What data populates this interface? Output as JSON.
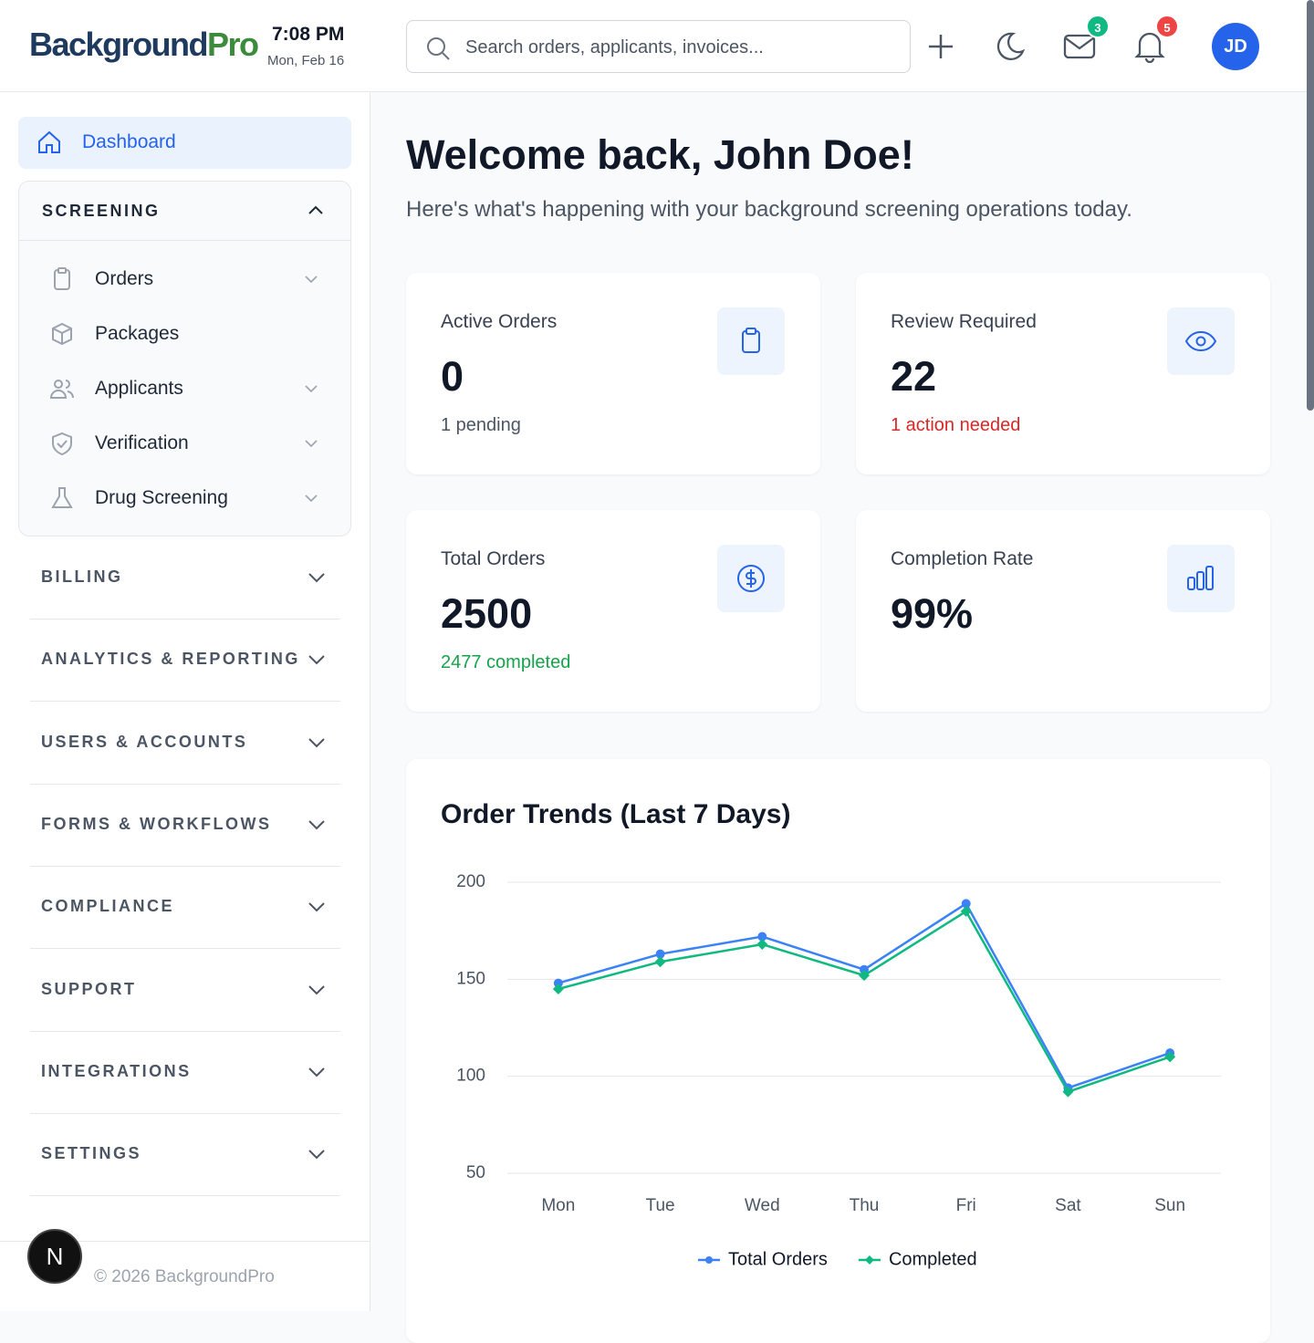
{
  "header": {
    "brand_main": "Background",
    "brand_accent": "Pro",
    "time": "7:08 PM",
    "date": "Mon, Feb 16",
    "search_placeholder": "Search orders, applicants, invoices...",
    "messages_badge": 3,
    "notifications_badge": 5,
    "avatar": "JD"
  },
  "sidebar": {
    "dashboard": "Dashboard",
    "screening": {
      "title": "SCREENING",
      "items": [
        "Orders",
        "Packages",
        "Applicants",
        "Verification",
        "Drug Screening"
      ]
    },
    "sections": [
      "BILLING",
      "ANALYTICS & REPORTING",
      "USERS & ACCOUNTS",
      "FORMS & WORKFLOWS",
      "COMPLIANCE",
      "SUPPORT",
      "INTEGRATIONS",
      "SETTINGS"
    ],
    "footer": "© 2026 BackgroundPro",
    "dev_badge": "N"
  },
  "welcome": {
    "title": "Welcome back, John Doe!",
    "subtitle": "Here's what's happening with your background screening operations today."
  },
  "stats": [
    {
      "label": "Active Orders",
      "value": "0",
      "note": "1 pending"
    },
    {
      "label": "Review Required",
      "value": "22",
      "note": "1 action needed"
    },
    {
      "label": "Total Orders",
      "value": "2500",
      "note": "2477 completed"
    },
    {
      "label": "Completion Rate",
      "value": "99%"
    }
  ],
  "chart_data": {
    "type": "line",
    "title": "Order Trends (Last 7 Days)",
    "categories": [
      "Mon",
      "Tue",
      "Wed",
      "Thu",
      "Fri",
      "Sat",
      "Sun"
    ],
    "series": [
      {
        "name": "Total Orders",
        "color": "#3b82f6",
        "values": [
          148,
          163,
          172,
          155,
          189,
          94,
          112
        ]
      },
      {
        "name": "Completed",
        "color": "#10b981",
        "values": [
          145,
          159,
          168,
          152,
          185,
          92,
          110
        ]
      }
    ],
    "ylim": [
      50,
      200
    ],
    "yticks": [
      50,
      100,
      150,
      200
    ],
    "grid": true,
    "legend": "bottom"
  }
}
